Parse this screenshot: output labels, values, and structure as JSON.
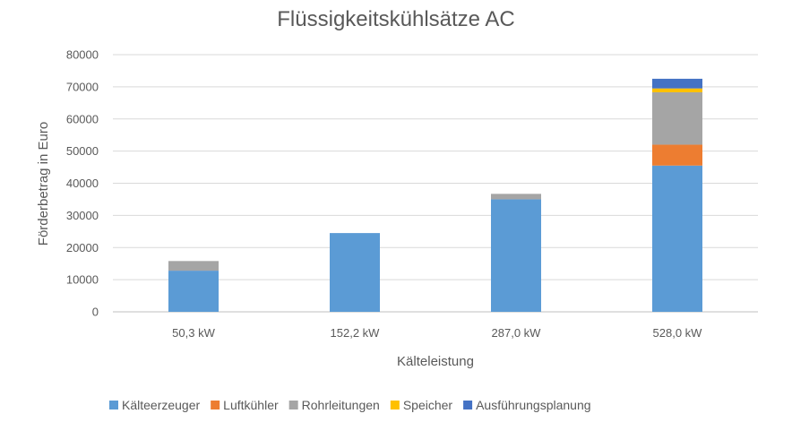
{
  "chart_data": {
    "type": "bar",
    "stacked": true,
    "title": "Flüssigkeitskühlsätze AC",
    "xlabel": "Kälteleistung",
    "ylabel": "Förderbetrag in Euro",
    "categories": [
      "50,3 kW",
      "152,2 kW",
      "287,0 kW",
      "528,0 kW"
    ],
    "ylim": [
      0,
      80000
    ],
    "yticks": [
      "0",
      "10000",
      "20000",
      "30000",
      "40000",
      "50000",
      "60000",
      "70000",
      "80000"
    ],
    "grid": true,
    "legend_position": "bottom",
    "series": [
      {
        "name": "Kälteerzeuger",
        "color": "#5b9bd5",
        "values": [
          12800,
          24500,
          35000,
          45500
        ]
      },
      {
        "name": "Luftkühler",
        "color": "#ed7d31",
        "values": [
          0,
          0,
          0,
          6500
        ]
      },
      {
        "name": "Rohrleitungen",
        "color": "#a5a5a5",
        "values": [
          3000,
          0,
          1700,
          16300
        ]
      },
      {
        "name": "Speicher",
        "color": "#ffc000",
        "values": [
          0,
          0,
          0,
          1200
        ]
      },
      {
        "name": "Ausführungsplanung",
        "color": "#4472c4",
        "values": [
          0,
          0,
          0,
          3000
        ]
      }
    ]
  }
}
